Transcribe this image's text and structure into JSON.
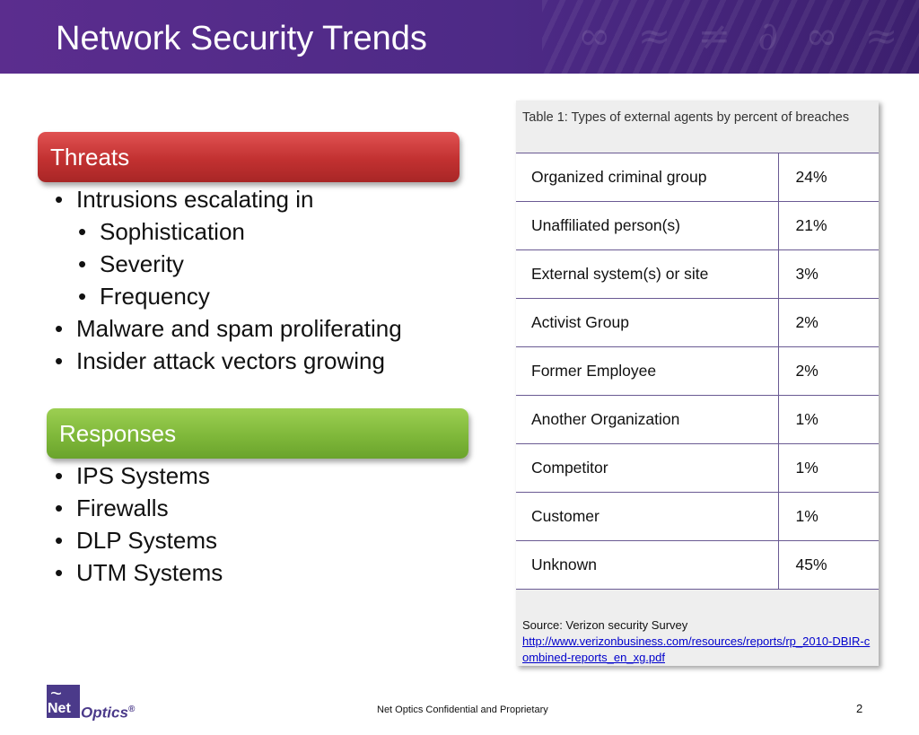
{
  "header": {
    "title": "Network Security Trends",
    "accent_color": "#4d2a86"
  },
  "threats": {
    "heading": "Threats",
    "color": "#c23131",
    "items": [
      {
        "text": "Intrusions escalating in",
        "level": 1
      },
      {
        "text": "Sophistication",
        "level": 2
      },
      {
        "text": "Severity",
        "level": 2
      },
      {
        "text": "Frequency",
        "level": 2
      },
      {
        "text": "Malware and spam proliferating",
        "level": 1
      },
      {
        "text": "Insider attack vectors growing",
        "level": 1
      }
    ]
  },
  "responses": {
    "heading": "Responses",
    "color": "#7fb83a",
    "items": [
      {
        "text": "IPS Systems",
        "level": 1
      },
      {
        "text": "Firewalls",
        "level": 1
      },
      {
        "text": "DLP Systems",
        "level": 1
      },
      {
        "text": "UTM Systems",
        "level": 1
      }
    ]
  },
  "table": {
    "caption": "Table 1: Types of external agents by percent of breaches",
    "rows": [
      {
        "agent": "Organized criminal group",
        "percent": "24%"
      },
      {
        "agent": "Unaffiliated person(s)",
        "percent": "21%"
      },
      {
        "agent": "External system(s) or site",
        "percent": "3%"
      },
      {
        "agent": "Activist Group",
        "percent": "2%"
      },
      {
        "agent": "Former Employee",
        "percent": "2%"
      },
      {
        "agent": "Another Organization",
        "percent": "1%"
      },
      {
        "agent": "Competitor",
        "percent": "1%"
      },
      {
        "agent": "Customer",
        "percent": "1%"
      },
      {
        "agent": "Unknown",
        "percent": "45%"
      }
    ],
    "source_label": "Source: Verizon security Survey",
    "source_link": "http://www.verizonbusiness.com/resources/reports/rp_2010-DBIR-combined-reports_en_xg.pdf"
  },
  "logo": {
    "net": "Net",
    "optics": "Optics",
    "registered": "®"
  },
  "footer": {
    "text": "Net Optics Confidential and Proprietary",
    "page_number": "2"
  }
}
